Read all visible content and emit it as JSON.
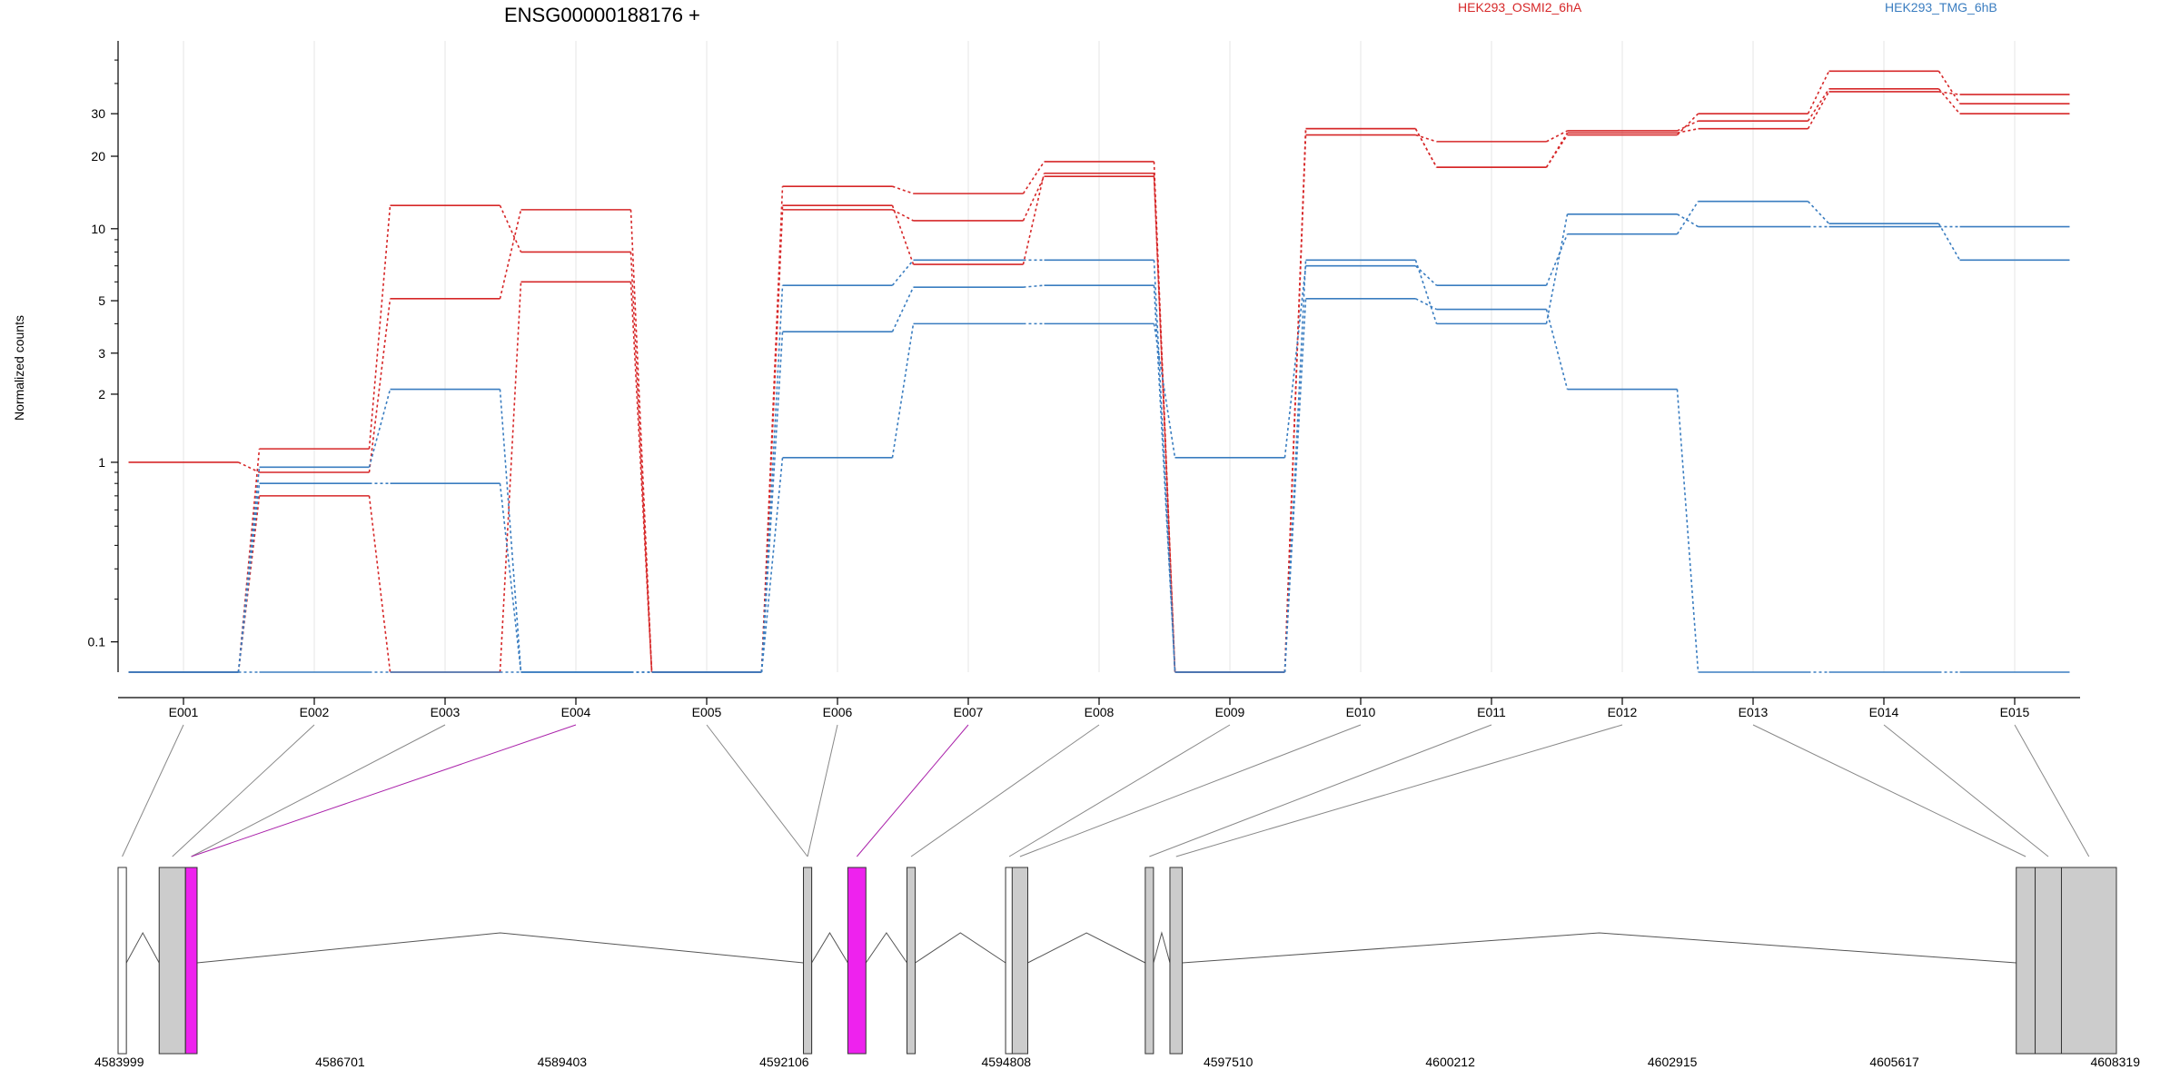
{
  "title": "ENSG00000188176 +",
  "legend": [
    {
      "name": "HEK293_OSMI2_6hA",
      "color": "#d62728"
    },
    {
      "name": "HEK293_TMG_6hB",
      "color": "#3a7dc0"
    }
  ],
  "colors": {
    "exon": "#cccccc",
    "highlight": "#ee22ee",
    "red": "#d62728",
    "blue": "#3a7dc0"
  },
  "chart_data": [
    {
      "type": "line",
      "title": "ENSG00000188176 +",
      "ylabel": "Normalized counts",
      "yscale": "log(y+0.1) approx",
      "yticks": [
        0.1,
        1,
        2,
        3,
        5,
        10,
        20,
        30
      ],
      "categories": [
        "E001",
        "E002",
        "E003",
        "E004",
        "E005",
        "E006",
        "E007",
        "E008",
        "E009",
        "E010",
        "E011",
        "E012",
        "E013",
        "E014",
        "E015"
      ],
      "series": [
        {
          "name": "HEK293_OSMI2_6hA",
          "values": [
            1.0,
            0.9,
            5.1,
            12.0,
            0.05,
            15.0,
            14.0,
            19.0,
            0.05,
            26.0,
            18.0,
            24.5,
            30.0,
            45.0,
            33.0
          ]
        },
        {
          "name": "HEK293_OSMI2_6hA",
          "values": [
            0.05,
            1.15,
            12.5,
            8.0,
            0.05,
            12.0,
            10.8,
            16.5,
            0.05,
            24.5,
            23.0,
            25.5,
            28.0,
            38.0,
            30.0
          ]
        },
        {
          "name": "HEK293_OSMI2_6hA",
          "values": [
            0.05,
            0.7,
            0.05,
            6.0,
            0.05,
            12.5,
            7.1,
            17.0,
            0.05,
            26.0,
            18.0,
            25.0,
            26.0,
            37.0,
            36.0
          ]
        },
        {
          "name": "HEK293_TMG_6hB",
          "values": [
            0.05,
            0.95,
            2.1,
            0.05,
            0.05,
            1.05,
            4.0,
            4.0,
            1.05,
            7.0,
            5.8,
            9.5,
            13.0,
            10.5,
            7.4
          ]
        },
        {
          "name": "HEK293_TMG_6hB",
          "values": [
            0.05,
            0.8,
            0.8,
            0.05,
            0.05,
            3.7,
            5.7,
            5.8,
            0.05,
            5.1,
            4.6,
            2.1,
            0.05,
            0.05,
            0.05
          ]
        },
        {
          "name": "HEK293_TMG_6hB",
          "values": [
            0.05,
            0.05,
            0.05,
            0.05,
            0.05,
            5.8,
            7.4,
            7.4,
            0.05,
            7.4,
            4.0,
            11.5,
            10.2,
            10.2,
            10.2
          ]
        }
      ]
    },
    {
      "type": "gene-model",
      "xticks": [
        "4583999",
        "4586701",
        "4589403",
        "4592106",
        "4594808",
        "4597510",
        "4600212",
        "4602915",
        "4605617",
        "4608319"
      ],
      "xrange": [
        4583999,
        4608319
      ],
      "exons": [
        {
          "id": "E001",
          "start": 4583999,
          "end": 4584100,
          "fill": "white"
        },
        {
          "id": "E002",
          "start": 4584499,
          "end": 4584820,
          "fill": "gray"
        },
        {
          "id": "E003",
          "start": 4584820,
          "end": 4584960,
          "fill": "gray"
        },
        {
          "id": "E004",
          "start": 4584820,
          "end": 4584960,
          "fill": "highlight"
        },
        {
          "id": "E005",
          "start": 4592340,
          "end": 4592440,
          "fill": "gray"
        },
        {
          "id": "E006",
          "start": 4592340,
          "end": 4592440,
          "fill": "gray"
        },
        {
          "id": "E007",
          "start": 4592880,
          "end": 4593100,
          "fill": "highlight"
        },
        {
          "id": "E008",
          "start": 4593600,
          "end": 4593700,
          "fill": "gray"
        },
        {
          "id": "E009",
          "start": 4594800,
          "end": 4594880,
          "fill": "white"
        },
        {
          "id": "E010",
          "start": 4594880,
          "end": 4595070,
          "fill": "gray"
        },
        {
          "id": "E011",
          "start": 4596500,
          "end": 4596600,
          "fill": "gray"
        },
        {
          "id": "E012",
          "start": 4596800,
          "end": 4596950,
          "fill": "gray"
        },
        {
          "id": "E013",
          "start": 4607100,
          "end": 4607330,
          "fill": "gray"
        },
        {
          "id": "E014",
          "start": 4607330,
          "end": 4607650,
          "fill": "gray"
        },
        {
          "id": "E015",
          "start": 4607650,
          "end": 4608319,
          "fill": "gray"
        }
      ],
      "highlighted": [
        "E004",
        "E007"
      ]
    }
  ]
}
